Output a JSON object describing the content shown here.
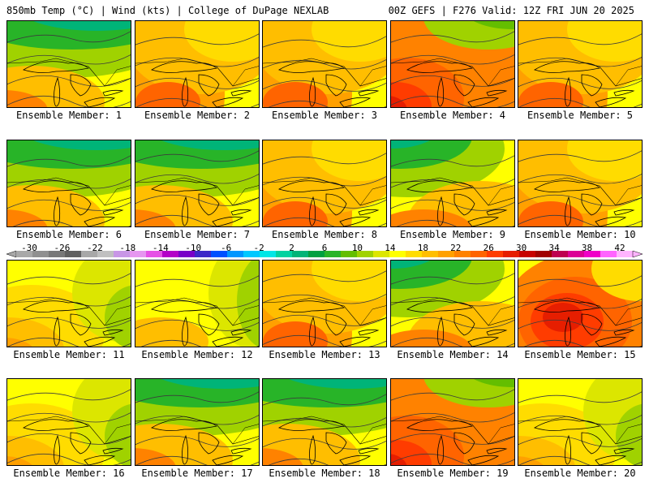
{
  "header": {
    "left": "850mb Temp (°C) | Wind (kts) | College of DuPage NEXLAB",
    "right": "00Z GEFS | F276 Valid: 12Z FRI JUN 20 2025"
  },
  "label_prefix": "Ensemble Member: ",
  "members": [
    {
      "label": "Ensemble Member: 1",
      "regime": "cool-north"
    },
    {
      "label": "Ensemble Member: 2",
      "regime": "warm"
    },
    {
      "label": "Ensemble Member: 3",
      "regime": "warm"
    },
    {
      "label": "Ensemble Member: 4",
      "regime": "hot-sw"
    },
    {
      "label": "Ensemble Member: 5",
      "regime": "warm"
    },
    {
      "label": "Ensemble Member: 6",
      "regime": "cool-north"
    },
    {
      "label": "Ensemble Member: 7",
      "regime": "cool-north"
    },
    {
      "label": "Ensemble Member: 8",
      "regime": "warm"
    },
    {
      "label": "Ensemble Member: 9",
      "regime": "cool-nw"
    },
    {
      "label": "Ensemble Member: 10",
      "regime": "warm"
    },
    {
      "label": "Ensemble Member: 11",
      "regime": "mild"
    },
    {
      "label": "Ensemble Member: 12",
      "regime": "cool-east"
    },
    {
      "label": "Ensemble Member: 13",
      "regime": "warm"
    },
    {
      "label": "Ensemble Member: 14",
      "regime": "cool-nw"
    },
    {
      "label": "Ensemble Member: 15",
      "regime": "hot-center"
    },
    {
      "label": "Ensemble Member: 16",
      "regime": "mild"
    },
    {
      "label": "Ensemble Member: 17",
      "regime": "cool-north"
    },
    {
      "label": "Ensemble Member: 18",
      "regime": "cool-north"
    },
    {
      "label": "Ensemble Member: 19",
      "regime": "hot-sw"
    },
    {
      "label": "Ensemble Member: 20",
      "regime": "mild"
    }
  ],
  "colorbar": {
    "ticks": [
      "-30",
      "-26",
      "-22",
      "-18",
      "-14",
      "-10",
      "-6",
      "-2",
      "2",
      "6",
      "10",
      "14",
      "18",
      "22",
      "26",
      "30",
      "34",
      "38",
      "42"
    ],
    "colors": [
      "#a8a8a8",
      "#909090",
      "#787878",
      "#606060",
      "#a8a8a8",
      "#c0c0c0",
      "#c896e6",
      "#e696f0",
      "#e650e6",
      "#b400c8",
      "#7800c8",
      "#3c28c8",
      "#0050ff",
      "#0096ff",
      "#00c8ff",
      "#00e6e6",
      "#00d2a0",
      "#00b478",
      "#00a040",
      "#28b428",
      "#64be00",
      "#a0d200",
      "#dce600",
      "#ffff00",
      "#ffdc00",
      "#ffbe00",
      "#ffa000",
      "#ff8200",
      "#ff6400",
      "#ff3c00",
      "#e61e00",
      "#c80000",
      "#a00000",
      "#be0050",
      "#dc0096",
      "#f000c8",
      "#ff64ff",
      "#ffb4ff"
    ]
  }
}
